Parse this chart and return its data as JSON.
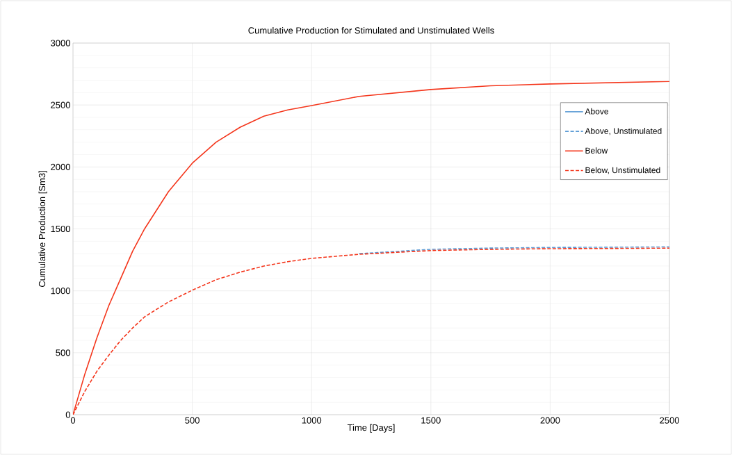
{
  "chart_data": {
    "type": "line",
    "title": "Cumulative Production for Stimulated and Unstimulated Wells",
    "xlabel": "Time [Days]",
    "ylabel": "Cumulative Production [Sm3]",
    "x": [
      0,
      50,
      100,
      150,
      200,
      250,
      300,
      400,
      500,
      600,
      700,
      800,
      900,
      1000,
      1200,
      1500,
      1750,
      2000,
      2250,
      2500
    ],
    "xlim": [
      0,
      2500
    ],
    "xticks": [
      0,
      500,
      1000,
      1500,
      2000,
      2500
    ],
    "ylim": [
      0,
      3000
    ],
    "yticks": [
      0,
      500,
      1000,
      1500,
      2000,
      2500,
      3000
    ],
    "grid": true,
    "legend": "right",
    "marker": "none",
    "series": [
      {
        "name": "Above",
        "color": "#5b9bd5",
        "line_style": "solid",
        "values": [
          null,
          null,
          null,
          null,
          null,
          null,
          null,
          null,
          null,
          null,
          null,
          null,
          null,
          null,
          null,
          null,
          null,
          null,
          null,
          null
        ]
      },
      {
        "name": "Above, Unstimulated",
        "color": "#5b9bd5",
        "line_style": "dashed",
        "values": [
          null,
          null,
          null,
          null,
          null,
          null,
          null,
          null,
          null,
          null,
          null,
          null,
          null,
          null,
          1300,
          1335,
          1345,
          1350,
          1352,
          1355
        ]
      },
      {
        "name": "Below",
        "color": "#f4361c",
        "line_style": "solid",
        "values": [
          0,
          330,
          620,
          880,
          1100,
          1320,
          1500,
          1800,
          2030,
          2200,
          2320,
          2410,
          2460,
          2495,
          2570,
          2625,
          2655,
          2670,
          2680,
          2690
        ]
      },
      {
        "name": "Below, Unstimulated",
        "color": "#f4361c",
        "line_style": "dashed",
        "values": [
          0,
          190,
          350,
          480,
          600,
          700,
          790,
          910,
          1005,
          1090,
          1150,
          1200,
          1235,
          1262,
          1295,
          1325,
          1335,
          1340,
          1342,
          1345
        ]
      }
    ]
  }
}
